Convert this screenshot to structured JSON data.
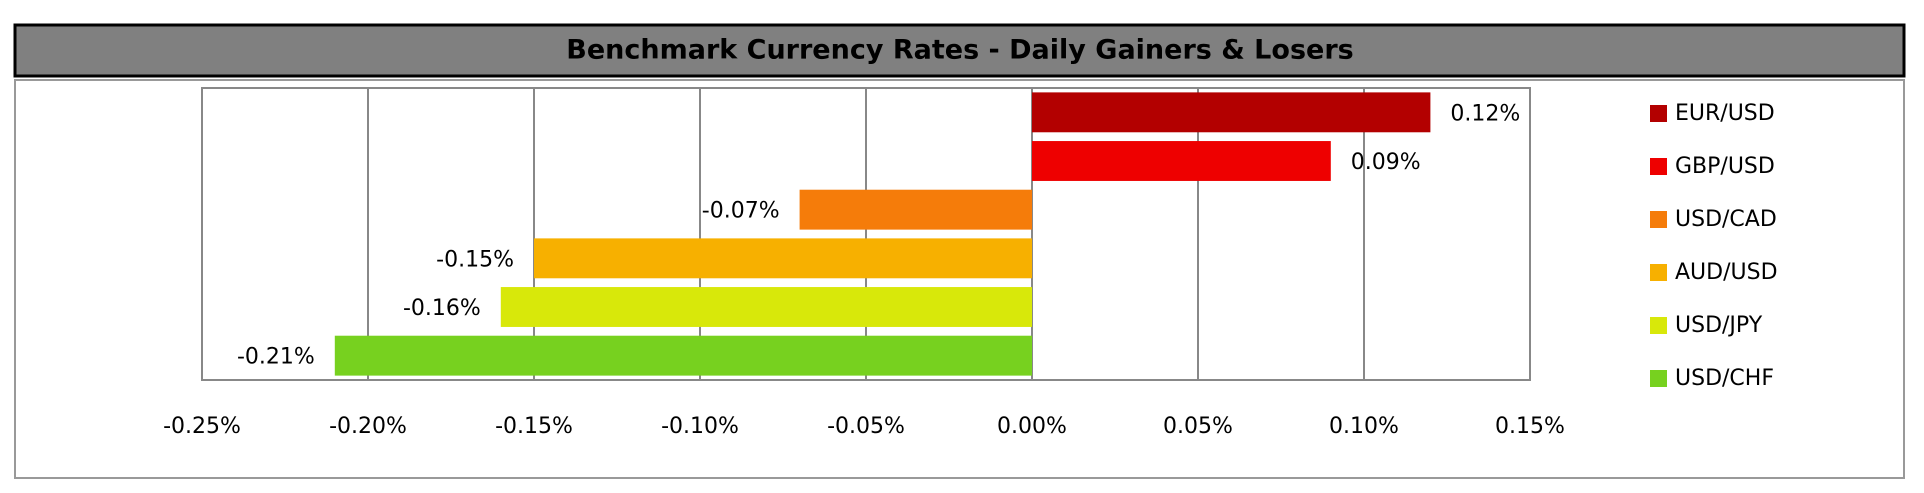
{
  "chart_data": {
    "type": "bar",
    "orientation": "horizontal",
    "title": "Benchmark Currency Rates - Daily Gainers & Losers",
    "series": [
      {
        "name": "EUR/USD",
        "color": "#b30000",
        "values": [
          0.12
        ],
        "value_labels": [
          "0.12%"
        ]
      },
      {
        "name": "GBP/USD",
        "color": "#ee0000",
        "values": [
          0.09
        ],
        "value_labels": [
          "0.09%"
        ]
      },
      {
        "name": "USD/CAD",
        "color": "#f57c0a",
        "values": [
          -0.07
        ],
        "value_labels": [
          "-0.07%"
        ]
      },
      {
        "name": "AUD/USD",
        "color": "#f7b000",
        "values": [
          -0.15
        ],
        "value_labels": [
          "-0.15%"
        ]
      },
      {
        "name": "USD/JPY",
        "color": "#d8e80a",
        "values": [
          -0.16
        ],
        "value_labels": [
          "-0.16%"
        ]
      },
      {
        "name": "USD/CHF",
        "color": "#77d11f",
        "values": [
          -0.21
        ],
        "value_labels": [
          "-0.21%"
        ]
      }
    ],
    "xlim": [
      -0.25,
      0.15
    ],
    "xticks": [
      {
        "value": -0.25,
        "label": "-0.25%"
      },
      {
        "value": -0.2,
        "label": "-0.20%"
      },
      {
        "value": -0.15,
        "label": "-0.15%"
      },
      {
        "value": -0.1,
        "label": "-0.10%"
      },
      {
        "value": -0.05,
        "label": "-0.05%"
      },
      {
        "value": 0,
        "label": "0.00%"
      },
      {
        "value": 0.05,
        "label": "0.05%"
      },
      {
        "value": 0.1,
        "label": "0.10%"
      },
      {
        "value": 0.15,
        "label": "0.15%"
      }
    ],
    "grid": true,
    "legend": "right"
  }
}
